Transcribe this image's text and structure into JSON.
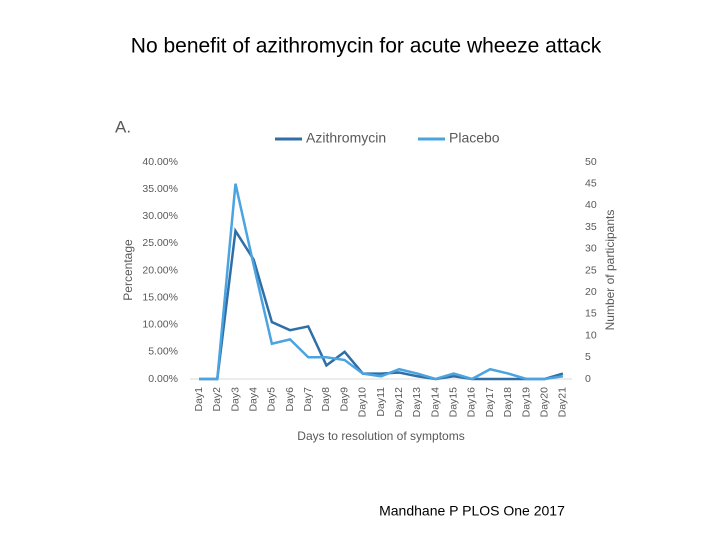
{
  "slide_title": "No benefit of azithromycin for acute wheeze attack",
  "caption": "Mandhane P PLOS One 2017",
  "chart_data": {
    "type": "line",
    "panel_label": "A.",
    "categories": [
      "Day1",
      "Day2",
      "Day3",
      "Day4",
      "Day5",
      "Day6",
      "Day7",
      "Day8",
      "Day9",
      "Day10",
      "Day11",
      "Day12",
      "Day13",
      "Day14",
      "Day15",
      "Day16",
      "Day17",
      "Day18",
      "Day19",
      "Day20",
      "Day21"
    ],
    "series": [
      {
        "name": "Azithromycin",
        "color": "#2f6fa6",
        "values": [
          0,
          0,
          27.3,
          22,
          10.5,
          9,
          9.7,
          2.5,
          5,
          1,
          1,
          1.2,
          0.5,
          0,
          0.5,
          0,
          0,
          0,
          0,
          0,
          1
        ]
      },
      {
        "name": "Placebo",
        "color": "#4ba3e0",
        "values": [
          0,
          0,
          36,
          21,
          6.5,
          7.3,
          4,
          4,
          3.5,
          1,
          0.5,
          1.8,
          1,
          0,
          1,
          0,
          1.8,
          1,
          0,
          0,
          0.5
        ]
      }
    ],
    "ylabel": "Percentage",
    "y2label": "Number of participants",
    "xlabel": "Days to resolution of symptoms",
    "ylim": [
      0,
      40
    ],
    "yticks": [
      {
        "value": 0,
        "label": "0.00%"
      },
      {
        "value": 5,
        "label": "5.00%"
      },
      {
        "value": 10,
        "label": "10.00%"
      },
      {
        "value": 15,
        "label": "15.00%"
      },
      {
        "value": 20,
        "label": "20.00%"
      },
      {
        "value": 25,
        "label": "25.00%"
      },
      {
        "value": 30,
        "label": "30.00%"
      },
      {
        "value": 35,
        "label": "35.00%"
      },
      {
        "value": 40,
        "label": "40.00%"
      }
    ],
    "y2lim": [
      0,
      50
    ],
    "y2ticks": [
      0,
      5,
      10,
      15,
      20,
      25,
      30,
      35,
      40,
      45,
      50
    ],
    "grid": false,
    "legend": "top"
  }
}
